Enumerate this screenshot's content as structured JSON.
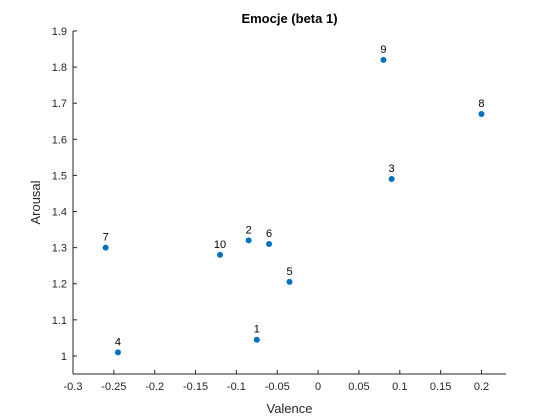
{
  "chart_data": {
    "type": "scatter",
    "title": "Emocje (beta 1)",
    "xlabel": "Valence",
    "ylabel": "Arousal",
    "xlim": [
      -0.3,
      0.23
    ],
    "ylim": [
      0.95,
      1.9
    ],
    "xticks": [
      -0.3,
      -0.25,
      -0.2,
      -0.15,
      -0.1,
      -0.05,
      0,
      0.05,
      0.1,
      0.15,
      0.2
    ],
    "xtick_labels": [
      "-0.3",
      "-0.25",
      "-0.2",
      "-0.15",
      "-0.1",
      "-0.05",
      "0",
      "0.05",
      "0.1",
      "0.15",
      "0.2"
    ],
    "yticks": [
      1,
      1.1,
      1.2,
      1.3,
      1.4,
      1.5,
      1.6,
      1.7,
      1.8,
      1.9
    ],
    "ytick_labels": [
      "1",
      "1.1",
      "1.2",
      "1.3",
      "1.4",
      "1.5",
      "1.6",
      "1.7",
      "1.8",
      "1.9"
    ],
    "grid": false,
    "marker_color": "#0072BD",
    "points": [
      {
        "label": "1",
        "x": -0.075,
        "y": 1.045
      },
      {
        "label": "2",
        "x": -0.085,
        "y": 1.32
      },
      {
        "label": "3",
        "x": 0.09,
        "y": 1.49
      },
      {
        "label": "4",
        "x": -0.245,
        "y": 1.01
      },
      {
        "label": "5",
        "x": -0.035,
        "y": 1.205
      },
      {
        "label": "6",
        "x": -0.06,
        "y": 1.31
      },
      {
        "label": "7",
        "x": -0.26,
        "y": 1.3
      },
      {
        "label": "8",
        "x": 0.2,
        "y": 1.67
      },
      {
        "label": "9",
        "x": 0.08,
        "y": 1.82
      },
      {
        "label": "10",
        "x": -0.12,
        "y": 1.28
      }
    ]
  }
}
